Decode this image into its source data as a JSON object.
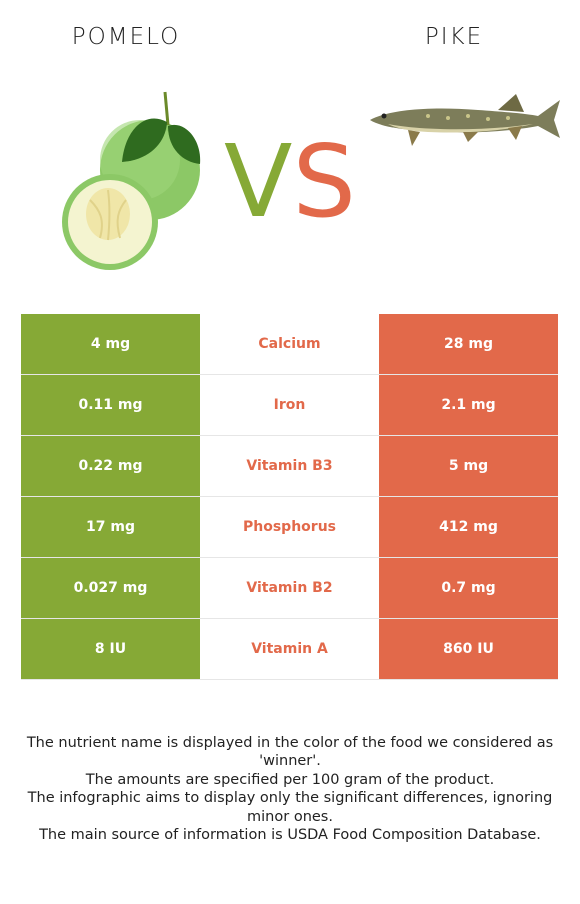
{
  "header": {
    "left_food": "POMELO",
    "right_food": "PIKE",
    "vs_v": "V",
    "vs_s": "S"
  },
  "colors": {
    "left": "#86a936",
    "right": "#e2694a"
  },
  "rows": [
    {
      "left": "4 mg",
      "nutrient": "Calcium",
      "right": "28 mg"
    },
    {
      "left": "0.11 mg",
      "nutrient": "Iron",
      "right": "2.1 mg"
    },
    {
      "left": "0.22 mg",
      "nutrient": "Vitamin B3",
      "right": "5 mg"
    },
    {
      "left": "17 mg",
      "nutrient": "Phosphorus",
      "right": "412 mg"
    },
    {
      "left": "0.027 mg",
      "nutrient": "Vitamin B2",
      "right": "0.7 mg"
    },
    {
      "left": "8 IU",
      "nutrient": "Vitamin A",
      "right": "860 IU"
    }
  ],
  "notes": [
    "The nutrient name is displayed in the color of the food we considered as 'winner'.",
    "The amounts are specified per 100 gram of the product.",
    "The infographic aims to display only the significant differences, ignoring minor ones.",
    "The main source of information is USDA Food Composition Database."
  ]
}
